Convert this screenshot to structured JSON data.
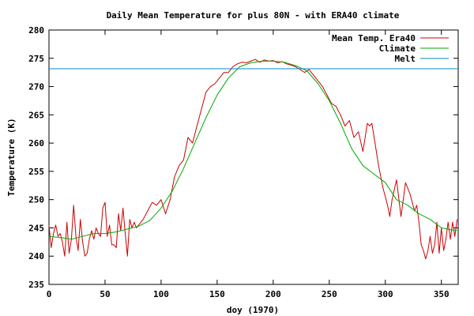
{
  "chart_data": {
    "type": "line",
    "title": "Daily Mean Temperature for plus 80N - with ERA40 climate",
    "xlabel": "doy (1970)",
    "ylabel": "Temperature (K)",
    "xlim": [
      0,
      365
    ],
    "ylim": [
      235,
      280
    ],
    "xticks": [
      0,
      50,
      100,
      150,
      200,
      250,
      300,
      350
    ],
    "yticks": [
      235,
      240,
      245,
      250,
      255,
      260,
      265,
      270,
      275,
      280
    ],
    "legend_position": "top-right",
    "grid": false,
    "series": [
      {
        "name": "Mean Temp. Era40",
        "color": "#cc0000",
        "x": [
          0,
          2,
          4,
          6,
          8,
          10,
          12,
          14,
          16,
          18,
          20,
          22,
          24,
          26,
          28,
          30,
          32,
          34,
          36,
          38,
          40,
          42,
          44,
          46,
          48,
          50,
          52,
          54,
          56,
          58,
          60,
          62,
          64,
          66,
          68,
          70,
          72,
          74,
          76,
          78,
          80,
          84,
          88,
          92,
          96,
          100,
          104,
          108,
          112,
          116,
          120,
          124,
          128,
          132,
          136,
          140,
          144,
          148,
          152,
          156,
          160,
          164,
          168,
          172,
          176,
          180,
          184,
          188,
          192,
          196,
          200,
          204,
          208,
          212,
          216,
          220,
          224,
          228,
          232,
          236,
          240,
          244,
          248,
          252,
          256,
          260,
          264,
          268,
          272,
          276,
          280,
          284,
          286,
          288,
          290,
          294,
          298,
          302,
          304,
          306,
          310,
          314,
          318,
          322,
          326,
          328,
          330,
          332,
          334,
          336,
          338,
          340,
          342,
          344,
          346,
          348,
          350,
          352,
          354,
          356,
          358,
          360,
          362,
          364
        ],
        "y": [
          245.5,
          241.5,
          244.0,
          245.5,
          243.5,
          244.0,
          242.5,
          240.0,
          246.0,
          240.5,
          243.0,
          249.0,
          243.5,
          241.0,
          246.5,
          242.5,
          240.0,
          240.5,
          243.0,
          244.5,
          243.0,
          245.0,
          244.0,
          243.5,
          248.5,
          249.5,
          243.5,
          245.5,
          242.0,
          242.0,
          241.5,
          247.5,
          244.5,
          248.5,
          244.0,
          240.0,
          246.5,
          245.0,
          246.0,
          245.0,
          245.5,
          246.5,
          248.0,
          249.5,
          249.0,
          250.0,
          247.5,
          250.0,
          254.0,
          256.0,
          257.0,
          261.0,
          260.0,
          263.0,
          266.0,
          269.0,
          270.0,
          270.5,
          271.5,
          272.5,
          272.5,
          273.5,
          274.0,
          274.3,
          274.2,
          274.5,
          274.8,
          274.3,
          274.7,
          274.5,
          274.6,
          274.2,
          274.4,
          274.0,
          273.8,
          273.5,
          273.0,
          272.5,
          273.0,
          272.0,
          271.0,
          270.0,
          268.5,
          267.0,
          266.5,
          265.0,
          263.0,
          264.0,
          261.0,
          262.0,
          258.5,
          263.5,
          263.0,
          263.5,
          261.0,
          256.0,
          252.0,
          249.0,
          247.0,
          250.0,
          253.5,
          247.0,
          253.0,
          251.0,
          248.0,
          249.0,
          246.0,
          242.0,
          241.0,
          239.5,
          241.0,
          243.5,
          240.5,
          242.0,
          246.0,
          240.5,
          245.0,
          241.0,
          243.0,
          246.0,
          243.0,
          246.0,
          243.5,
          246.5
        ]
      },
      {
        "name": "Climate",
        "color": "#00aa00",
        "x": [
          0,
          10,
          20,
          30,
          40,
          50,
          60,
          70,
          80,
          90,
          100,
          110,
          120,
          130,
          140,
          150,
          160,
          170,
          180,
          190,
          200,
          210,
          220,
          230,
          240,
          250,
          260,
          270,
          280,
          290,
          300,
          310,
          320,
          330,
          340,
          350,
          360,
          364
        ],
        "y": [
          243.5,
          243.3,
          243.0,
          243.5,
          244.0,
          244.0,
          244.3,
          244.8,
          245.3,
          246.3,
          248.5,
          251.5,
          255.5,
          260.0,
          264.5,
          268.5,
          271.5,
          273.5,
          274.2,
          274.5,
          274.5,
          274.3,
          273.7,
          272.8,
          270.5,
          267.5,
          263.5,
          259.0,
          256.0,
          254.5,
          253.0,
          250.0,
          249.0,
          247.5,
          246.5,
          245.0,
          244.6,
          244.6
        ]
      },
      {
        "name": "Melt",
        "color": "#0088cc",
        "x": [
          0,
          365
        ],
        "y": [
          273.15,
          273.15
        ]
      }
    ]
  }
}
